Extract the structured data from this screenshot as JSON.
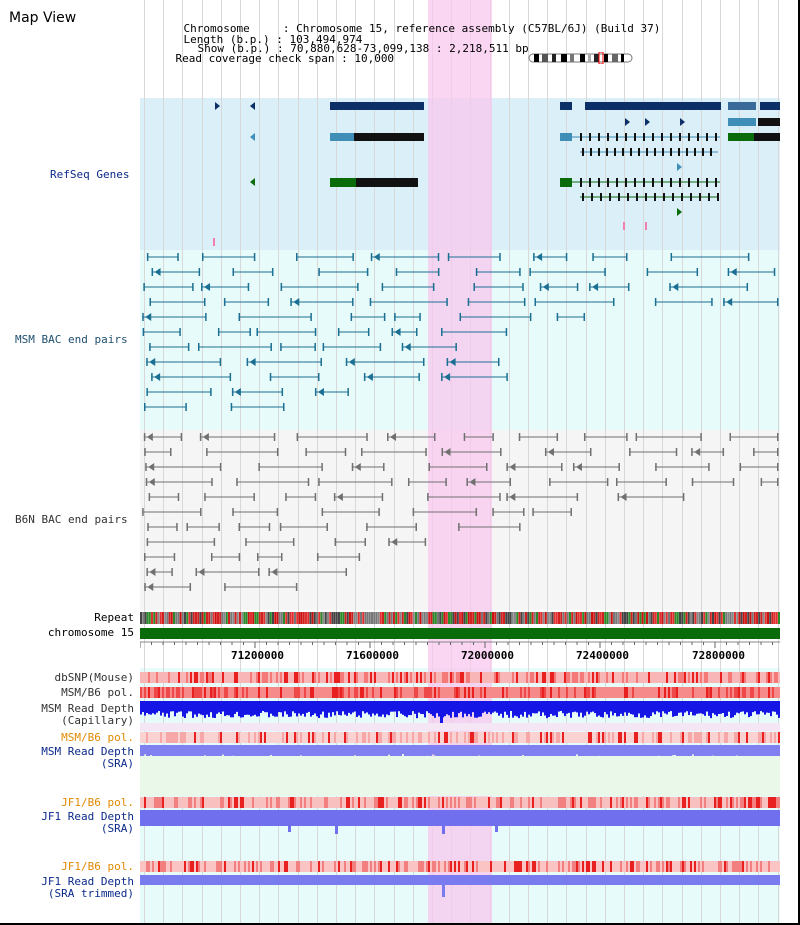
{
  "page": {
    "title": "Map View"
  },
  "info": {
    "chromosome_key": "Chromosome",
    "chromosome_val": ": Chromosome 15, reference assembly (C57BL/6J) (Build 37)",
    "length_key": "Length (b.p.)",
    "length_val": ": 103,494,974",
    "show_key": "Show (b.p.)",
    "show_val": ": 70,880,628-73,099,138 : 2,218,511 bp",
    "coverage_key": "Read coverage check span",
    "coverage_val": ": 10,000"
  },
  "tracks": {
    "refseq": "RefSeq Genes",
    "msm_bac": "MSM BAC end pairs",
    "b6n_bac": "B6N BAC end pairs",
    "repeat": "Repeat",
    "chromosome": "chromosome 15",
    "dbsnp": "dbSNP(Mouse)",
    "msm_b6_pol_1": "MSM/B6 pol.",
    "msm_read_depth_cap": "MSM Read Depth\n(Capillary)",
    "msm_b6_pol_2": "MSM/B6 pol.",
    "msm_read_depth_sra": "MSM Read Depth\n(SRA)",
    "jf1_b6_pol_1": "JF1/B6 pol.",
    "jf1_read_depth_sra": "JF1 Read Depth\n(SRA)",
    "jf1_b6_pol_2": "JF1/B6 pol.",
    "jf1_read_depth_trim": "JF1 Read Depth\n(SRA trimmed)"
  },
  "axis": {
    "ticks": [
      "71200000",
      "71600000",
      "72000000",
      "72400000",
      "72800000"
    ]
  },
  "colors": {
    "refseq_bg": "#dbeff8",
    "bac_bg": "#e8fbfb",
    "highlight": "#f8d8f0",
    "gene_dark": "#0b2f66",
    "gene_light": "#3f8eb8",
    "gene_green": "#0a6b0a",
    "bac_msm": "#1a6f92",
    "bac_b6n": "#707070",
    "chrom_green": "#0a6b0a",
    "depth_blue": "#1010e0",
    "depth_lavender": "#7f7ff2",
    "pol_red": "#f05050"
  }
}
